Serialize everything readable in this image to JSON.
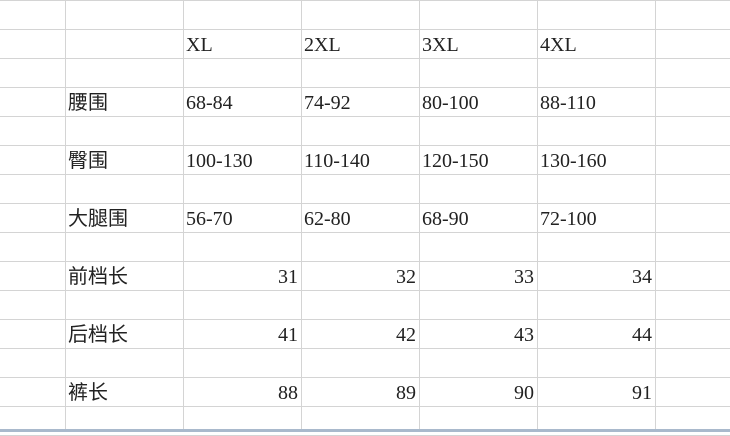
{
  "header": [
    "",
    "XL",
    "2XL",
    "3XL",
    "4XL"
  ],
  "rows": [
    {
      "label": "腰围",
      "values": [
        "68-84",
        "74-92",
        "80-100",
        "88-110"
      ],
      "numeric": false
    },
    {
      "label": "臀围",
      "values": [
        "100-130",
        "110-140",
        "120-150",
        "130-160"
      ],
      "numeric": false
    },
    {
      "label": "大腿围",
      "values": [
        "56-70",
        "62-80",
        "68-90",
        "72-100"
      ],
      "numeric": false
    },
    {
      "label": "前档长",
      "values": [
        "31",
        "32",
        "33",
        "34"
      ],
      "numeric": true
    },
    {
      "label": "后档长",
      "values": [
        "41",
        "42",
        "43",
        "44"
      ],
      "numeric": true
    },
    {
      "label": "裤长",
      "values": [
        "88",
        "89",
        "90",
        "91"
      ],
      "numeric": true
    }
  ]
}
